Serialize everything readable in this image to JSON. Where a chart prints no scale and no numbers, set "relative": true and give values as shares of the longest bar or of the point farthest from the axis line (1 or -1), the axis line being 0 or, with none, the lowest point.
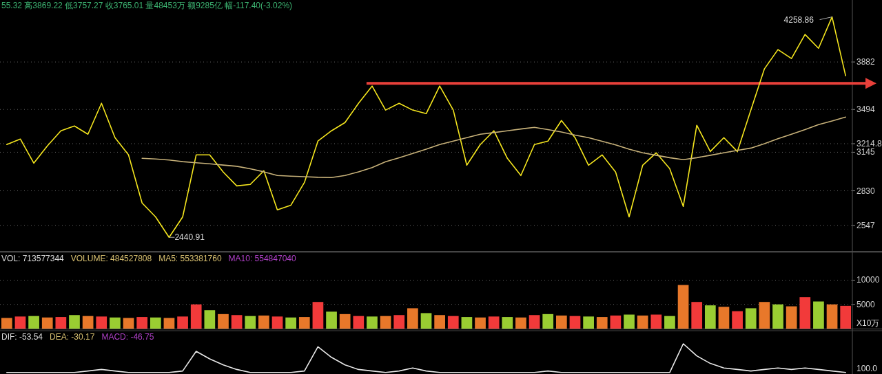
{
  "chart_data": [
    {
      "type": "line",
      "subtitle": "55.32 高3869.22 低3757.27 收3765.01 量48453万 额9285亿 幅-117.40(-3.02%)",
      "categories": [
        null,
        null,
        null,
        null,
        null,
        null,
        null,
        null,
        null,
        null,
        null,
        null,
        null,
        null,
        null,
        null,
        null,
        null,
        null,
        null,
        null,
        null,
        null,
        null,
        null,
        null,
        null,
        null,
        null,
        null,
        null,
        null,
        null,
        null,
        null,
        null,
        null,
        null,
        null,
        null,
        null,
        null,
        null,
        null,
        null,
        null,
        null,
        null,
        null,
        null,
        null,
        null,
        null,
        null,
        null,
        null,
        null,
        null,
        null,
        null,
        null,
        null,
        null
      ],
      "series": [
        {
          "color": "#f5e61e",
          "values": [
            3208,
            3253,
            3056,
            3196,
            3320,
            3359,
            3292,
            3545,
            3264,
            3123,
            2730,
            2617,
            2450,
            2617,
            3123,
            3123,
            2983,
            2870,
            2882,
            2994,
            2674,
            2713,
            2898,
            3236,
            3320,
            3387,
            3545,
            3685,
            3489,
            3545,
            3489,
            3460,
            3685,
            3489,
            3039,
            3208,
            3320,
            3095,
            2955,
            3208,
            3236,
            3404,
            3264,
            3039,
            3123,
            2983,
            2617,
            3039,
            3140,
            3011,
            2702,
            3365,
            3151,
            3264,
            3151,
            3489,
            3826,
            3983,
            3910,
            4107,
            3994,
            4250,
            3770
          ]
        },
        {
          "color": "#c8b27a",
          "values": [
            null,
            null,
            null,
            null,
            null,
            null,
            null,
            null,
            null,
            null,
            3095,
            3090,
            3081,
            3068,
            3059,
            3050,
            3040,
            3030,
            3010,
            2985,
            2955,
            2950,
            2945,
            2940,
            2938,
            2955,
            2985,
            3020,
            3067,
            3100,
            3135,
            3170,
            3208,
            3236,
            3264,
            3292,
            3305,
            3320,
            3335,
            3348,
            3330,
            3310,
            3285,
            3264,
            3235,
            3205,
            3170,
            3140,
            3120,
            3100,
            3084,
            3100,
            3120,
            3140,
            3160,
            3179,
            3215,
            3255,
            3292,
            3330,
            3370,
            3400,
            3432
          ]
        }
      ],
      "ylim": [
        2339,
        4388
      ],
      "yticks": [
        2547,
        2830,
        3145,
        3214.8,
        3494,
        3882
      ],
      "grid": "y",
      "tick_labels": "y",
      "ref_lines": [
        {
          "axis": "y",
          "value": 3708,
          "color": "#e8403a"
        }
      ],
      "annotations": [
        "4258.86",
        "2440.91"
      ]
    },
    {
      "type": "bar",
      "title": "VOL: 713577344",
      "annotations": [
        "VOLUME: 484527808",
        "MA5: 553381760",
        "MA10: 554847040"
      ],
      "ylabel": "X10万",
      "categories": [
        null,
        null,
        null,
        null,
        null,
        null,
        null,
        null,
        null,
        null,
        null,
        null,
        null,
        null,
        null,
        null,
        null,
        null,
        null,
        null,
        null,
        null,
        null,
        null,
        null,
        null,
        null,
        null,
        null,
        null,
        null,
        null,
        null,
        null,
        null,
        null,
        null,
        null,
        null,
        null,
        null,
        null,
        null,
        null,
        null,
        null,
        null,
        null,
        null,
        null,
        null,
        null,
        null,
        null,
        null,
        null,
        null,
        null,
        null,
        null,
        null,
        null,
        null
      ],
      "values": [
        2200,
        2500,
        2600,
        2300,
        2400,
        2800,
        2600,
        2500,
        2300,
        2200,
        2400,
        2300,
        2200,
        2500,
        5000,
        3800,
        3000,
        2800,
        2600,
        2700,
        2500,
        2300,
        2400,
        5500,
        3500,
        3000,
        2600,
        2500,
        2600,
        2800,
        4200,
        3200,
        2800,
        2600,
        2400,
        2300,
        2500,
        2400,
        2300,
        2800,
        3000,
        2700,
        2600,
        2500,
        2400,
        2700,
        2900,
        2700,
        2900,
        2600,
        9000,
        5500,
        4800,
        4500,
        3600,
        4200,
        5500,
        5000,
        4600,
        6500,
        5600,
        5000,
        4700
      ],
      "colors": [
        "#e8782a",
        "#f23a3a",
        "#9acd32",
        "#e8782a",
        "#f23a3a",
        "#9acd32",
        "#e8782a",
        "#f23a3a",
        "#9acd32",
        "#e8782a",
        "#f23a3a",
        "#9acd32",
        "#e8782a",
        "#f23a3a",
        "#f23a3a",
        "#9acd32",
        "#e8782a",
        "#f23a3a",
        "#9acd32",
        "#e8782a",
        "#f23a3a",
        "#9acd32",
        "#e8782a",
        "#f23a3a",
        "#9acd32",
        "#e8782a",
        "#f23a3a",
        "#9acd32",
        "#e8782a",
        "#f23a3a",
        "#e8782a",
        "#9acd32",
        "#e8782a",
        "#f23a3a",
        "#9acd32",
        "#e8782a",
        "#f23a3a",
        "#9acd32",
        "#e8782a",
        "#f23a3a",
        "#9acd32",
        "#e8782a",
        "#f23a3a",
        "#9acd32",
        "#e8782a",
        "#f23a3a",
        "#9acd32",
        "#e8782a",
        "#f23a3a",
        "#9acd32",
        "#e8782a",
        "#f23a3a",
        "#9acd32",
        "#e8782a",
        "#f23a3a",
        "#9acd32",
        "#e8782a",
        "#9acd32",
        "#e8782a",
        "#f23a3a",
        "#9acd32",
        "#e8782a",
        "#f23a3a"
      ],
      "ylim": [
        0,
        15600
      ],
      "yticks": [
        5000,
        10000
      ],
      "grid": "y",
      "tick_labels": "y"
    },
    {
      "type": "line",
      "relative": true,
      "title": "DIF: -53.54",
      "annotations": [
        "DEA: -30.17",
        "MACD: -46.75"
      ],
      "ylabel": "100.0",
      "categories": [
        null,
        null,
        null,
        null,
        null,
        null,
        null,
        null,
        null,
        null,
        null,
        null,
        null,
        null,
        null,
        null,
        null,
        null,
        null,
        null,
        null,
        null,
        null,
        null,
        null,
        null,
        null,
        null,
        null,
        null,
        null,
        null,
        null,
        null,
        null,
        null,
        null,
        null,
        null,
        null,
        null,
        null,
        null,
        null,
        null,
        null,
        null,
        null,
        null,
        null,
        null,
        null,
        null,
        null,
        null,
        null,
        null,
        null,
        null,
        null,
        null,
        null,
        null
      ],
      "series": [
        {
          "color": "#e8e8e8",
          "values": [
            0.05,
            0.05,
            0.05,
            0.05,
            0.05,
            0.05,
            0.1,
            0.15,
            0.1,
            0.05,
            0.05,
            0.05,
            0.05,
            0.1,
            0.75,
            0.5,
            0.3,
            0.15,
            0.05,
            0.05,
            0.05,
            0.05,
            0.1,
            0.9,
            0.55,
            0.3,
            0.15,
            0.1,
            0.05,
            0.1,
            0.2,
            0.1,
            0.05,
            0.05,
            0.05,
            0.05,
            0.05,
            0.05,
            0.05,
            0.05,
            0.1,
            0.05,
            0.05,
            0.05,
            0.05,
            0.05,
            0.05,
            0.05,
            0.05,
            0.05,
            1,
            0.6,
            0.35,
            0.2,
            0.15,
            0.1,
            0.15,
            0.2,
            0.15,
            0.2,
            0.15,
            0.1,
            0.05
          ]
        }
      ]
    }
  ]
}
